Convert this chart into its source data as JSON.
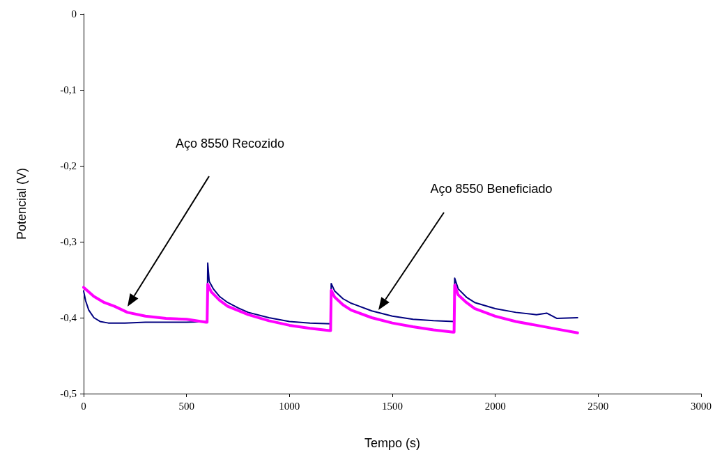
{
  "chart_data": {
    "type": "line",
    "xlabel": "Tempo (s)",
    "ylabel": "Potencial (V)",
    "xlim": [
      0,
      3000
    ],
    "xticks": [
      0,
      500,
      1000,
      1500,
      2000,
      2500,
      3000
    ],
    "ylim": [
      -0.5,
      0
    ],
    "yticks": [
      {
        "value": -0.5,
        "label": "-0,5"
      },
      {
        "value": -0.4,
        "label": "-0,4"
      },
      {
        "value": -0.3,
        "label": "-0,3"
      },
      {
        "value": -0.2,
        "label": "-0,2"
      },
      {
        "value": -0.1,
        "label": "-0,1"
      },
      0
    ],
    "grid": false,
    "legend": false,
    "marker": "none",
    "line_style": "solid",
    "series": [
      {
        "color": "#ff00ff",
        "x": [
          0,
          50,
          100,
          150,
          213,
          300,
          400,
          500,
          595,
          600,
          603,
          620,
          660,
          700,
          800,
          900,
          1000,
          1100,
          1195,
          1200,
          1203,
          1220,
          1260,
          1300,
          1400,
          1500,
          1600,
          1700,
          1795,
          1800,
          1803,
          1820,
          1860,
          1900,
          2000,
          2100,
          2200,
          2300,
          2400
        ],
        "values": [
          -0.36,
          -0.372,
          -0.38,
          -0.385,
          -0.393,
          -0.398,
          -0.401,
          -0.402,
          -0.406,
          -0.406,
          -0.356,
          -0.366,
          -0.377,
          -0.385,
          -0.396,
          -0.404,
          -0.41,
          -0.414,
          -0.417,
          -0.417,
          -0.364,
          -0.373,
          -0.383,
          -0.39,
          -0.4,
          -0.407,
          -0.412,
          -0.416,
          -0.419,
          -0.419,
          -0.357,
          -0.37,
          -0.38,
          -0.388,
          -0.398,
          -0.405,
          -0.41,
          -0.415,
          -0.42
        ]
      },
      {
        "color": "#000080",
        "x": [
          0,
          10,
          25,
          50,
          80,
          120,
          200,
          300,
          400,
          500,
          600,
          603,
          610,
          630,
          660,
          700,
          750,
          800,
          900,
          1000,
          1100,
          1200,
          1203,
          1220,
          1260,
          1300,
          1400,
          1500,
          1600,
          1700,
          1800,
          1803,
          1820,
          1860,
          1900,
          2000,
          2100,
          2200,
          2250,
          2300,
          2400
        ],
        "values": [
          -0.365,
          -0.378,
          -0.39,
          -0.4,
          -0.405,
          -0.407,
          -0.407,
          -0.406,
          -0.406,
          -0.406,
          -0.405,
          -0.328,
          -0.352,
          -0.362,
          -0.372,
          -0.38,
          -0.387,
          -0.393,
          -0.4,
          -0.405,
          -0.407,
          -0.408,
          -0.355,
          -0.365,
          -0.375,
          -0.381,
          -0.391,
          -0.398,
          -0.402,
          -0.404,
          -0.405,
          -0.348,
          -0.362,
          -0.373,
          -0.38,
          -0.388,
          -0.393,
          -0.396,
          -0.394,
          -0.401,
          -0.4
        ]
      }
    ],
    "annotations": [
      "Aço 8550 Recozido",
      "Aço 8550 Beneficiado"
    ]
  }
}
